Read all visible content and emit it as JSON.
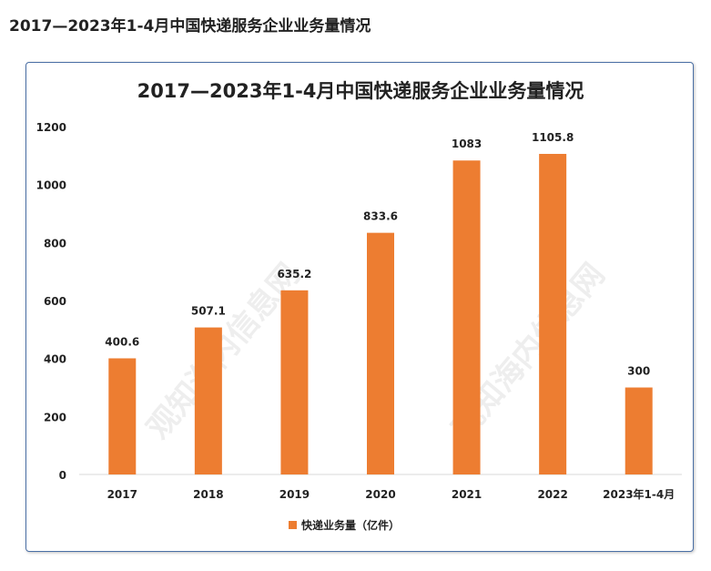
{
  "page": {
    "heading": "2017—2023年1-4月中国快递服务企业业务量情况"
  },
  "watermarks": [
    "观知海内信息网",
    "观知海内信息网"
  ],
  "colors": {
    "bar": "#ed7d31",
    "axis": "#d9d9d9",
    "text": "#222222",
    "border": "#4a6fa5"
  },
  "chart_data": {
    "type": "bar",
    "title": "2017—2023年1-4月中国快递服务企业业务量情况",
    "categories": [
      "2017",
      "2018",
      "2019",
      "2020",
      "2021",
      "2022",
      "2023年1-4月"
    ],
    "series": [
      {
        "name": "快递业务量（亿件）",
        "values": [
          400.6,
          507.1,
          635.2,
          833.6,
          1083,
          1105.8,
          300
        ],
        "labels": [
          "400.6",
          "507.1",
          "635.2",
          "833.6",
          "1083",
          "1105.8",
          "300"
        ]
      }
    ],
    "y_ticks": [
      0,
      200,
      400,
      600,
      800,
      1000,
      1200
    ],
    "ylim": [
      0,
      1200
    ],
    "grid": false,
    "legend_position": "bottom"
  }
}
